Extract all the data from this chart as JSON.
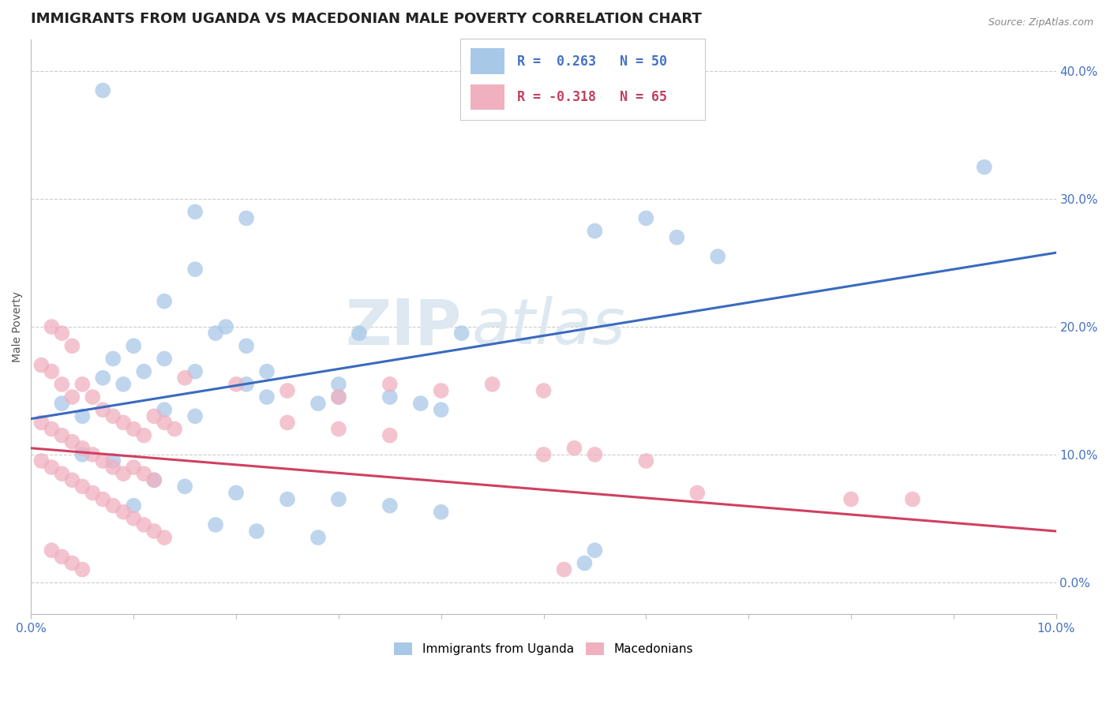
{
  "title": "IMMIGRANTS FROM UGANDA VS MACEDONIAN MALE POVERTY CORRELATION CHART",
  "source": "Source: ZipAtlas.com",
  "ylabel": "Male Poverty",
  "ylabel_right_ticks": [
    "0.0%",
    "10.0%",
    "20.0%",
    "30.0%",
    "40.0%"
  ],
  "ylabel_right_vals": [
    0.0,
    0.1,
    0.2,
    0.3,
    0.4
  ],
  "legend_blue_r": "R =  0.263",
  "legend_blue_n": "N = 50",
  "legend_pink_r": "R = -0.318",
  "legend_pink_n": "N = 65",
  "blue_color": "#a8c8e8",
  "pink_color": "#f0b0c0",
  "trendline_blue": "#3a6abf",
  "trendline_pink": "#d04060",
  "legend_r_blue": "#4472c4",
  "legend_r_pink": "#c04060",
  "watermark_zip": "ZIP",
  "watermark_atlas": "atlas",
  "xmin": 0.0,
  "xmax": 0.1,
  "ymin": -0.025,
  "ymax": 0.425,
  "blue_scatter": [
    [
      0.007,
      0.385
    ],
    [
      0.032,
      0.195
    ],
    [
      0.016,
      0.29
    ],
    [
      0.021,
      0.285
    ],
    [
      0.042,
      0.195
    ],
    [
      0.016,
      0.245
    ],
    [
      0.013,
      0.22
    ],
    [
      0.019,
      0.2
    ],
    [
      0.021,
      0.185
    ],
    [
      0.06,
      0.285
    ],
    [
      0.063,
      0.27
    ],
    [
      0.055,
      0.275
    ],
    [
      0.067,
      0.255
    ],
    [
      0.093,
      0.325
    ],
    [
      0.008,
      0.175
    ],
    [
      0.011,
      0.165
    ],
    [
      0.01,
      0.185
    ],
    [
      0.013,
      0.175
    ],
    [
      0.016,
      0.165
    ],
    [
      0.018,
      0.195
    ],
    [
      0.023,
      0.165
    ],
    [
      0.03,
      0.155
    ],
    [
      0.007,
      0.16
    ],
    [
      0.009,
      0.155
    ],
    [
      0.003,
      0.14
    ],
    [
      0.013,
      0.135
    ],
    [
      0.016,
      0.13
    ],
    [
      0.005,
      0.13
    ],
    [
      0.021,
      0.155
    ],
    [
      0.023,
      0.145
    ],
    [
      0.028,
      0.14
    ],
    [
      0.03,
      0.145
    ],
    [
      0.035,
      0.145
    ],
    [
      0.038,
      0.14
    ],
    [
      0.04,
      0.135
    ],
    [
      0.005,
      0.1
    ],
    [
      0.008,
      0.095
    ],
    [
      0.012,
      0.08
    ],
    [
      0.015,
      0.075
    ],
    [
      0.02,
      0.07
    ],
    [
      0.025,
      0.065
    ],
    [
      0.03,
      0.065
    ],
    [
      0.035,
      0.06
    ],
    [
      0.04,
      0.055
    ],
    [
      0.01,
      0.06
    ],
    [
      0.018,
      0.045
    ],
    [
      0.022,
      0.04
    ],
    [
      0.028,
      0.035
    ],
    [
      0.054,
      0.015
    ],
    [
      0.055,
      0.025
    ]
  ],
  "pink_scatter": [
    [
      0.001,
      0.17
    ],
    [
      0.002,
      0.2
    ],
    [
      0.003,
      0.195
    ],
    [
      0.004,
      0.185
    ],
    [
      0.002,
      0.165
    ],
    [
      0.003,
      0.155
    ],
    [
      0.004,
      0.145
    ],
    [
      0.005,
      0.155
    ],
    [
      0.006,
      0.145
    ],
    [
      0.007,
      0.135
    ],
    [
      0.008,
      0.13
    ],
    [
      0.009,
      0.125
    ],
    [
      0.01,
      0.12
    ],
    [
      0.011,
      0.115
    ],
    [
      0.012,
      0.13
    ],
    [
      0.013,
      0.125
    ],
    [
      0.014,
      0.12
    ],
    [
      0.001,
      0.125
    ],
    [
      0.002,
      0.12
    ],
    [
      0.003,
      0.115
    ],
    [
      0.004,
      0.11
    ],
    [
      0.005,
      0.105
    ],
    [
      0.006,
      0.1
    ],
    [
      0.007,
      0.095
    ],
    [
      0.008,
      0.09
    ],
    [
      0.009,
      0.085
    ],
    [
      0.01,
      0.09
    ],
    [
      0.011,
      0.085
    ],
    [
      0.012,
      0.08
    ],
    [
      0.001,
      0.095
    ],
    [
      0.002,
      0.09
    ],
    [
      0.003,
      0.085
    ],
    [
      0.004,
      0.08
    ],
    [
      0.005,
      0.075
    ],
    [
      0.006,
      0.07
    ],
    [
      0.007,
      0.065
    ],
    [
      0.008,
      0.06
    ],
    [
      0.009,
      0.055
    ],
    [
      0.01,
      0.05
    ],
    [
      0.011,
      0.045
    ],
    [
      0.012,
      0.04
    ],
    [
      0.013,
      0.035
    ],
    [
      0.015,
      0.16
    ],
    [
      0.02,
      0.155
    ],
    [
      0.025,
      0.15
    ],
    [
      0.03,
      0.145
    ],
    [
      0.025,
      0.125
    ],
    [
      0.03,
      0.12
    ],
    [
      0.035,
      0.115
    ],
    [
      0.035,
      0.155
    ],
    [
      0.04,
      0.15
    ],
    [
      0.045,
      0.155
    ],
    [
      0.05,
      0.15
    ],
    [
      0.05,
      0.1
    ],
    [
      0.053,
      0.105
    ],
    [
      0.055,
      0.1
    ],
    [
      0.06,
      0.095
    ],
    [
      0.065,
      0.07
    ],
    [
      0.08,
      0.065
    ],
    [
      0.086,
      0.065
    ],
    [
      0.052,
      0.01
    ],
    [
      0.002,
      0.025
    ],
    [
      0.003,
      0.02
    ],
    [
      0.004,
      0.015
    ],
    [
      0.005,
      0.01
    ]
  ],
  "blue_trendline_x": [
    0.0,
    0.1
  ],
  "blue_trendline_y": [
    0.128,
    0.258
  ],
  "pink_trendline_x": [
    0.0,
    0.1
  ],
  "pink_trendline_y": [
    0.105,
    0.04
  ],
  "grid_color": "#cccccc",
  "background_color": "#ffffff",
  "title_fontsize": 13,
  "axis_label_fontsize": 10,
  "tick_fontsize": 11
}
